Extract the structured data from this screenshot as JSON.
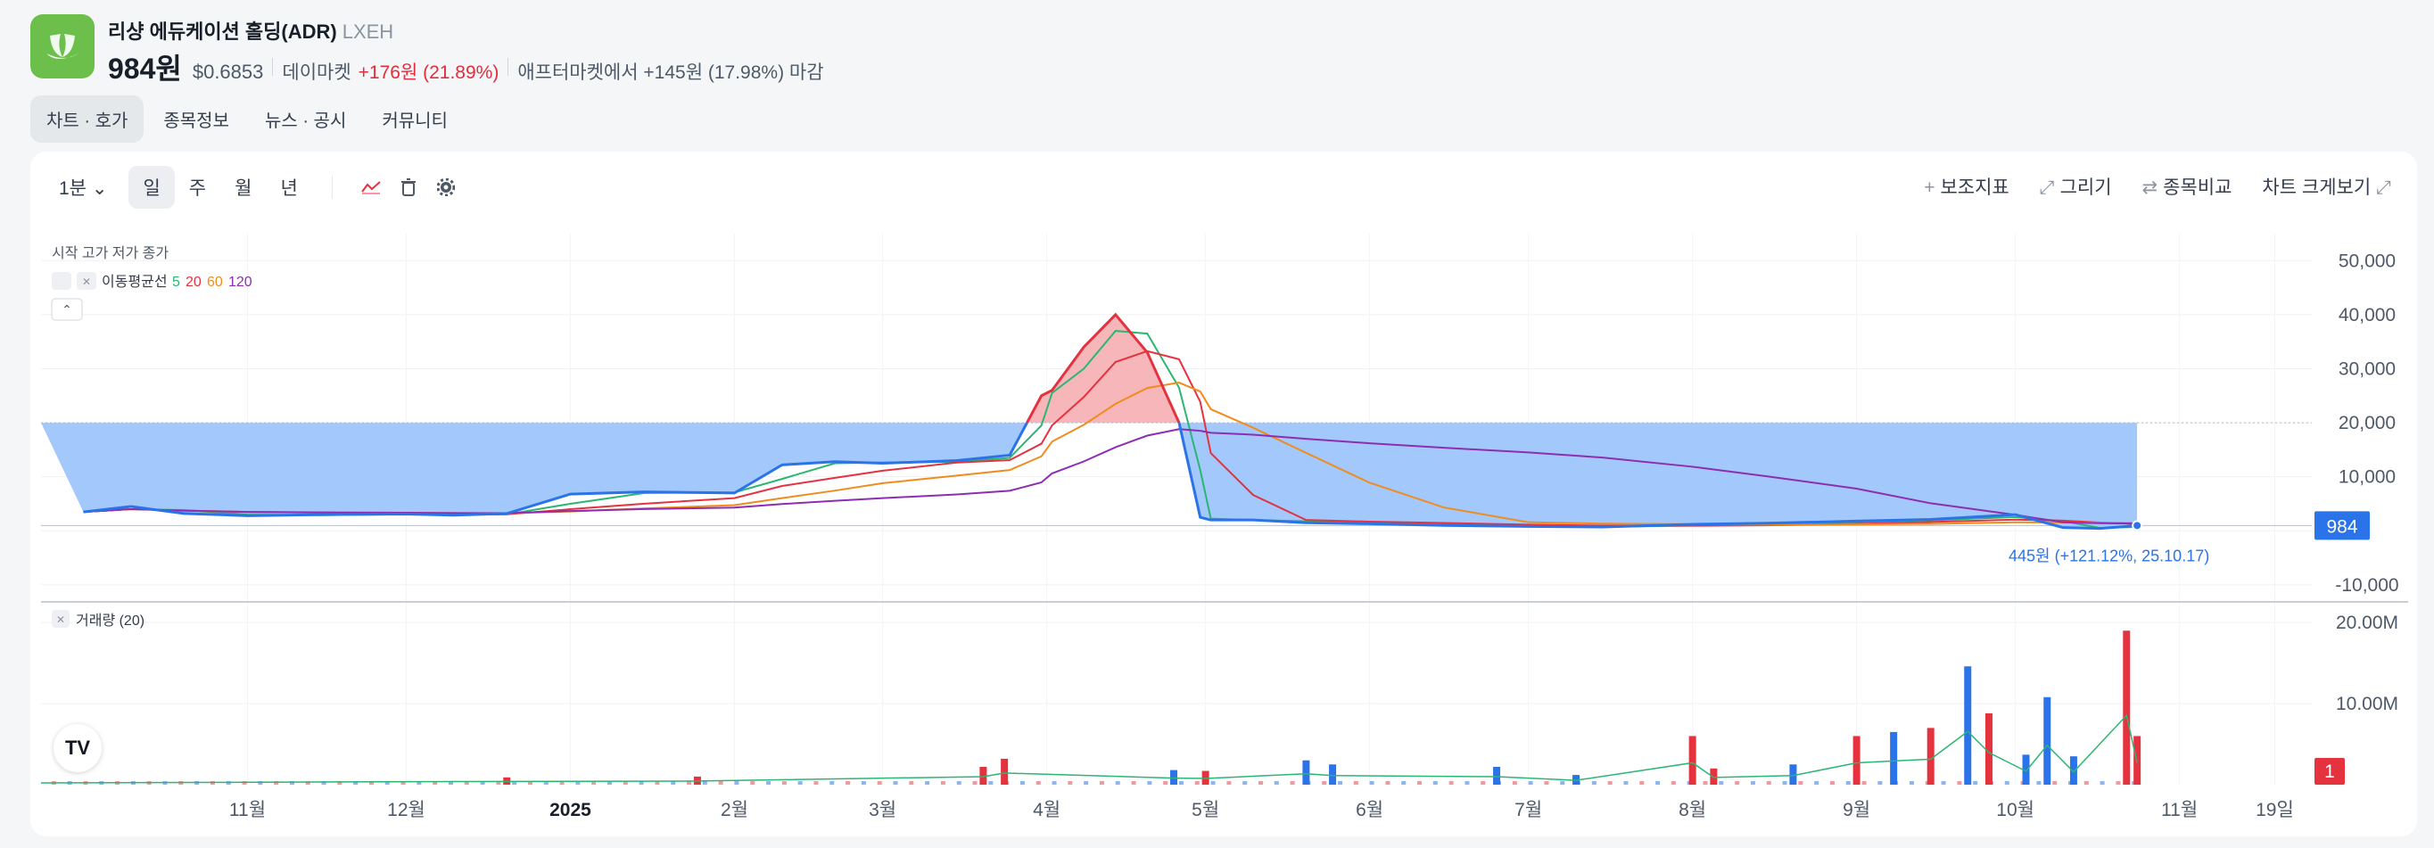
{
  "header": {
    "name": "리샹 에듀케이션 홀딩(ADR)",
    "ticker": "LXEH",
    "price": "984원",
    "usd_price": "$0.6853",
    "day_market_label": "데이마켓",
    "day_change": "+176원 (21.89%)",
    "after_market": "애프터마켓에서 +145원 (17.98%) 마감"
  },
  "tabs": [
    "차트 · 호가",
    "종목정보",
    "뉴스 · 공시",
    "커뮤니티"
  ],
  "toolbar": {
    "interval": "1분",
    "periods": [
      "일",
      "주",
      "월",
      "년"
    ],
    "right": {
      "indicator": "보조지표",
      "draw": "그리기",
      "compare": "종목비교",
      "enlarge": "차트 크게보기"
    }
  },
  "legend": {
    "ohlc": "시작 고가 저가 종가",
    "ma_label": "이동평균선",
    "ma_periods": [
      "5",
      "20",
      "60",
      "120"
    ],
    "volume_label": "거래량 (20)"
  },
  "colors": {
    "up": "#e5323f",
    "down": "#2b73e8",
    "fill_down": "#9ec5fb",
    "fill_up": "#f7b2b6",
    "ma5": "#2bb673",
    "ma20": "#e5323f",
    "ma60": "#f08c1c",
    "ma120": "#8e2db3",
    "logo": "#6cbf4a"
  },
  "chart_data": [
    {
      "type": "line",
      "name": "price",
      "x": [
        "2024-10-01",
        "2024-10-10",
        "2024-10-20",
        "2024-11-01",
        "2024-11-15",
        "2024-12-01",
        "2024-12-10",
        "2024-12-20",
        "2025-01-01",
        "2025-01-15",
        "2025-02-01",
        "2025-02-10",
        "2025-02-20",
        "2025-03-01",
        "2025-03-15",
        "2025-03-25",
        "2025-03-31",
        "2025-04-02",
        "2025-04-08",
        "2025-04-14",
        "2025-04-20",
        "2025-04-26",
        "2025-04-30",
        "2025-05-02",
        "2025-05-10",
        "2025-05-20",
        "2025-06-01",
        "2025-06-15",
        "2025-07-01",
        "2025-07-15",
        "2025-08-01",
        "2025-08-15",
        "2025-09-01",
        "2025-09-15",
        "2025-10-01",
        "2025-10-10",
        "2025-10-17",
        "2025-10-24"
      ],
      "y": [
        3500,
        4500,
        3200,
        2800,
        3000,
        3100,
        2900,
        3200,
        6800,
        7200,
        7000,
        12200,
        12800,
        12500,
        13000,
        14000,
        25000,
        26000,
        34000,
        40000,
        33000,
        20000,
        2500,
        2000,
        2000,
        1500,
        1300,
        1000,
        800,
        700,
        1200,
        1400,
        1800,
        2100,
        3000,
        600,
        445,
        984
      ],
      "ylim": [
        -12000,
        55000
      ],
      "yticks": [
        "50,000",
        "40,000",
        "30,000",
        "20,000",
        "10,000",
        "-10,000"
      ],
      "baseline": 20000,
      "last_price_label": "984",
      "annotation": "445원 (+121.12%, 25.10.17)"
    },
    {
      "type": "bar",
      "name": "volume",
      "ylim": [
        0,
        22000000
      ],
      "yticks": [
        "20.00M",
        "10.00M"
      ],
      "last_label": "1",
      "x_labels": [
        "11월",
        "12월",
        "2025",
        "2월",
        "3월",
        "4월",
        "5월",
        "6월",
        "7월",
        "8월",
        "9월",
        "10월",
        "11월",
        "19일"
      ],
      "bars": [
        {
          "t": "2024-12-20",
          "v": 900000,
          "up": true
        },
        {
          "t": "2025-01-25",
          "v": 1000000,
          "up": true
        },
        {
          "t": "2025-03-20",
          "v": 2200000,
          "up": true
        },
        {
          "t": "2025-03-24",
          "v": 3200000,
          "up": true
        },
        {
          "t": "2025-04-25",
          "v": 1800000,
          "up": false
        },
        {
          "t": "2025-05-01",
          "v": 1700000,
          "up": true
        },
        {
          "t": "2025-05-20",
          "v": 3000000,
          "up": false
        },
        {
          "t": "2025-05-25",
          "v": 2500000,
          "up": false
        },
        {
          "t": "2025-06-25",
          "v": 2200000,
          "up": false
        },
        {
          "t": "2025-07-10",
          "v": 1200000,
          "up": false
        },
        {
          "t": "2025-08-01",
          "v": 6000000,
          "up": true
        },
        {
          "t": "2025-08-05",
          "v": 2000000,
          "up": true
        },
        {
          "t": "2025-08-20",
          "v": 2500000,
          "up": false
        },
        {
          "t": "2025-09-01",
          "v": 6000000,
          "up": true
        },
        {
          "t": "2025-09-08",
          "v": 6500000,
          "up": false
        },
        {
          "t": "2025-09-15",
          "v": 7000000,
          "up": true
        },
        {
          "t": "2025-09-22",
          "v": 14600000,
          "up": false
        },
        {
          "t": "2025-09-26",
          "v": 8800000,
          "up": true
        },
        {
          "t": "2025-10-03",
          "v": 3700000,
          "up": false
        },
        {
          "t": "2025-10-07",
          "v": 10800000,
          "up": false
        },
        {
          "t": "2025-10-12",
          "v": 3500000,
          "up": false
        },
        {
          "t": "2025-10-22",
          "v": 19000000,
          "up": true
        },
        {
          "t": "2025-10-24",
          "v": 6000000,
          "up": true
        }
      ]
    }
  ]
}
